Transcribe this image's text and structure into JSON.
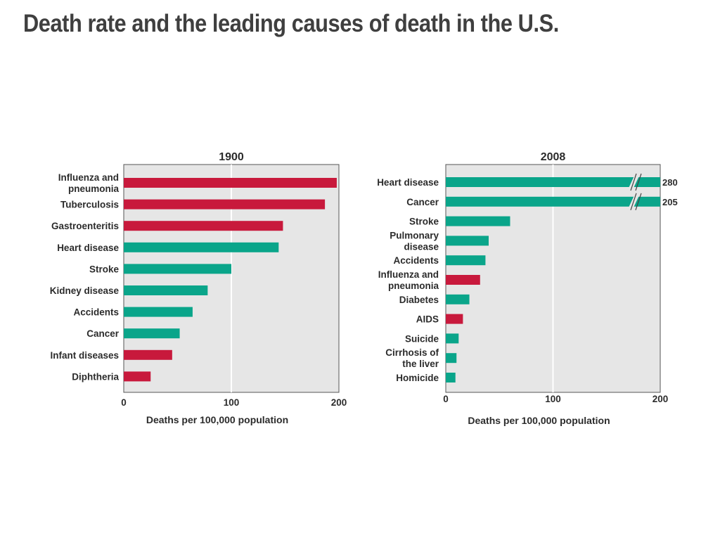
{
  "slide": {
    "title": "Death rate and the leading causes of death in the U.S."
  },
  "colors": {
    "infectious": "#c8193c",
    "noninfectious": "#0aa58a",
    "panel_bg": "#e6e6e6",
    "gridline": "#ffffff"
  },
  "chart_data": [
    {
      "type": "bar",
      "orientation": "horizontal",
      "title": "1900",
      "xlabel": "Deaths per 100,000 population",
      "xlim": [
        0,
        200
      ],
      "xticks": [
        0,
        100,
        200
      ],
      "grid": true,
      "categories": [
        "Influenza and\npneumonia",
        "Tuberculosis",
        "Gastroenteritis",
        "Heart disease",
        "Stroke",
        "Kidney disease",
        "Accidents",
        "Cancer",
        "Infant diseases",
        "Diphtheria"
      ],
      "values": [
        198,
        187,
        148,
        144,
        100,
        78,
        64,
        52,
        45,
        25
      ],
      "colors": [
        "#c8193c",
        "#c8193c",
        "#c8193c",
        "#0aa58a",
        "#0aa58a",
        "#0aa58a",
        "#0aa58a",
        "#0aa58a",
        "#c8193c",
        "#c8193c"
      ]
    },
    {
      "type": "bar",
      "orientation": "horizontal",
      "title": "2008",
      "xlabel": "Deaths per 100,000 population",
      "xlim": [
        0,
        200
      ],
      "xticks": [
        0,
        100,
        200
      ],
      "grid": true,
      "axis_break": true,
      "categories": [
        "Heart disease",
        "Cancer",
        "Stroke",
        "Pulmonary\ndisease",
        "Accidents",
        "Influenza and\npneumonia",
        "Diabetes",
        "AIDS",
        "Suicide",
        "Cirrhosis of\nthe liver",
        "Homicide"
      ],
      "values": [
        280,
        205,
        60,
        40,
        37,
        32,
        22,
        16,
        12,
        10,
        9
      ],
      "value_labels": [
        "280",
        "205",
        "",
        "",
        "",
        "",
        "",
        "",
        "",
        "",
        ""
      ],
      "colors": [
        "#0aa58a",
        "#0aa58a",
        "#0aa58a",
        "#0aa58a",
        "#0aa58a",
        "#c8193c",
        "#0aa58a",
        "#c8193c",
        "#0aa58a",
        "#0aa58a",
        "#0aa58a"
      ]
    }
  ]
}
